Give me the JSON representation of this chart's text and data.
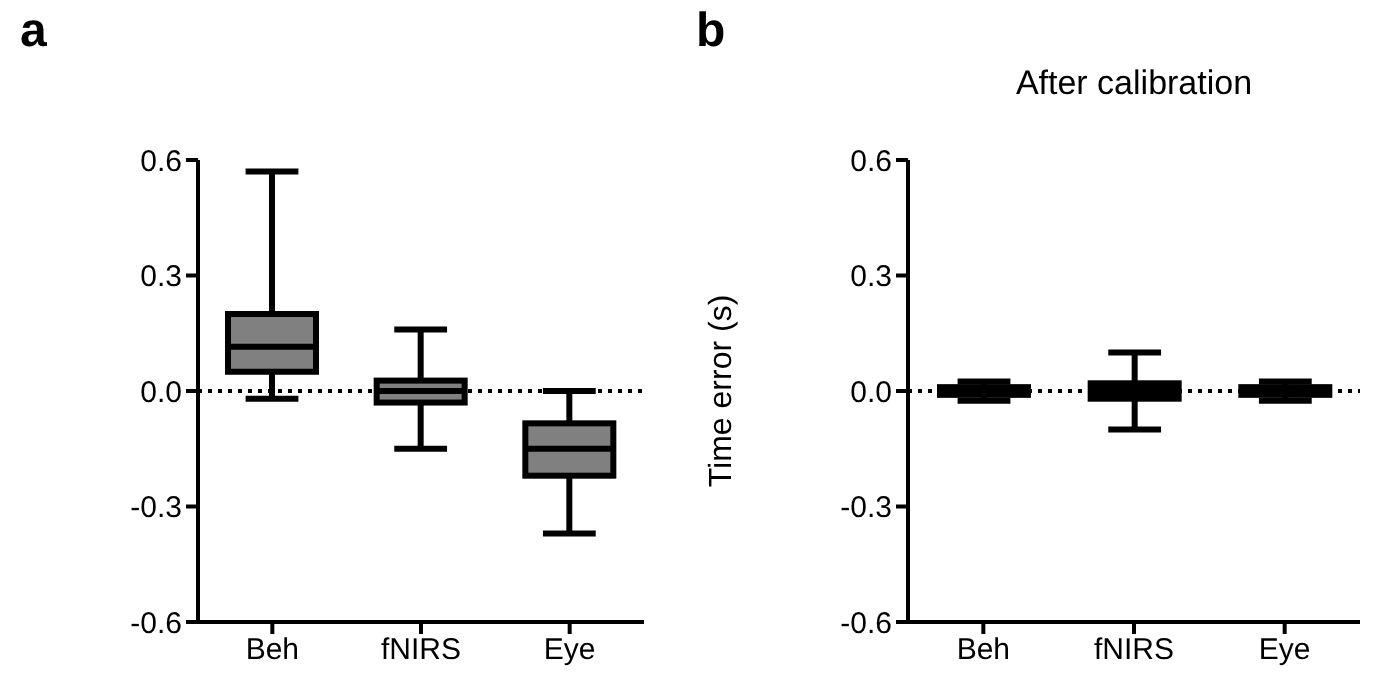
{
  "chart_data": [
    {
      "type": "box",
      "annotations": [
        "a"
      ],
      "categories": [
        "Beh",
        "fNIRS",
        "Eye"
      ],
      "series": [
        {
          "color": "#808080",
          "boxes": [
            {
              "low": -0.02,
              "q1": 0.05,
              "median": 0.115,
              "q3": 0.2,
              "high": 0.57
            },
            {
              "low": -0.15,
              "q1": -0.03,
              "median": 0,
              "q3": 0.027,
              "high": 0.16
            },
            {
              "low": -0.37,
              "q1": -0.22,
              "median": -0.15,
              "q3": -0.084,
              "high": 0
            }
          ]
        }
      ],
      "ylim": [
        -0.6,
        0.6
      ],
      "yticks": [
        -0.6,
        -0.3,
        {
          "value": 0,
          "label": "0.0"
        },
        0.3,
        0.6
      ],
      "ref_lines": [
        {
          "axis": "y",
          "value": 0,
          "line_style": "dotted"
        }
      ]
    },
    {
      "type": "box",
      "annotations": [
        "b"
      ],
      "title": "After calibration",
      "ylabel": "Time error (s)",
      "categories": [
        "Beh",
        "fNIRS",
        "Eye"
      ],
      "series": [
        {
          "color": "#000000",
          "boxes": [
            {
              "low": -0.025,
              "q1": -0.01,
              "median": 0,
              "q3": 0.01,
              "high": 0.025
            },
            {
              "low": -0.1,
              "q1": -0.02,
              "median": 0,
              "q3": 0.02,
              "high": 0.1
            },
            {
              "low": -0.025,
              "q1": -0.01,
              "median": 0,
              "q3": 0.01,
              "high": 0.025
            }
          ]
        }
      ],
      "ylim": [
        -0.6,
        0.6
      ],
      "yticks": [
        -0.6,
        -0.3,
        {
          "value": 0,
          "label": "0.0"
        },
        0.3,
        0.6
      ],
      "ref_lines": [
        {
          "axis": "y",
          "value": 0,
          "line_style": "dotted"
        }
      ]
    }
  ]
}
